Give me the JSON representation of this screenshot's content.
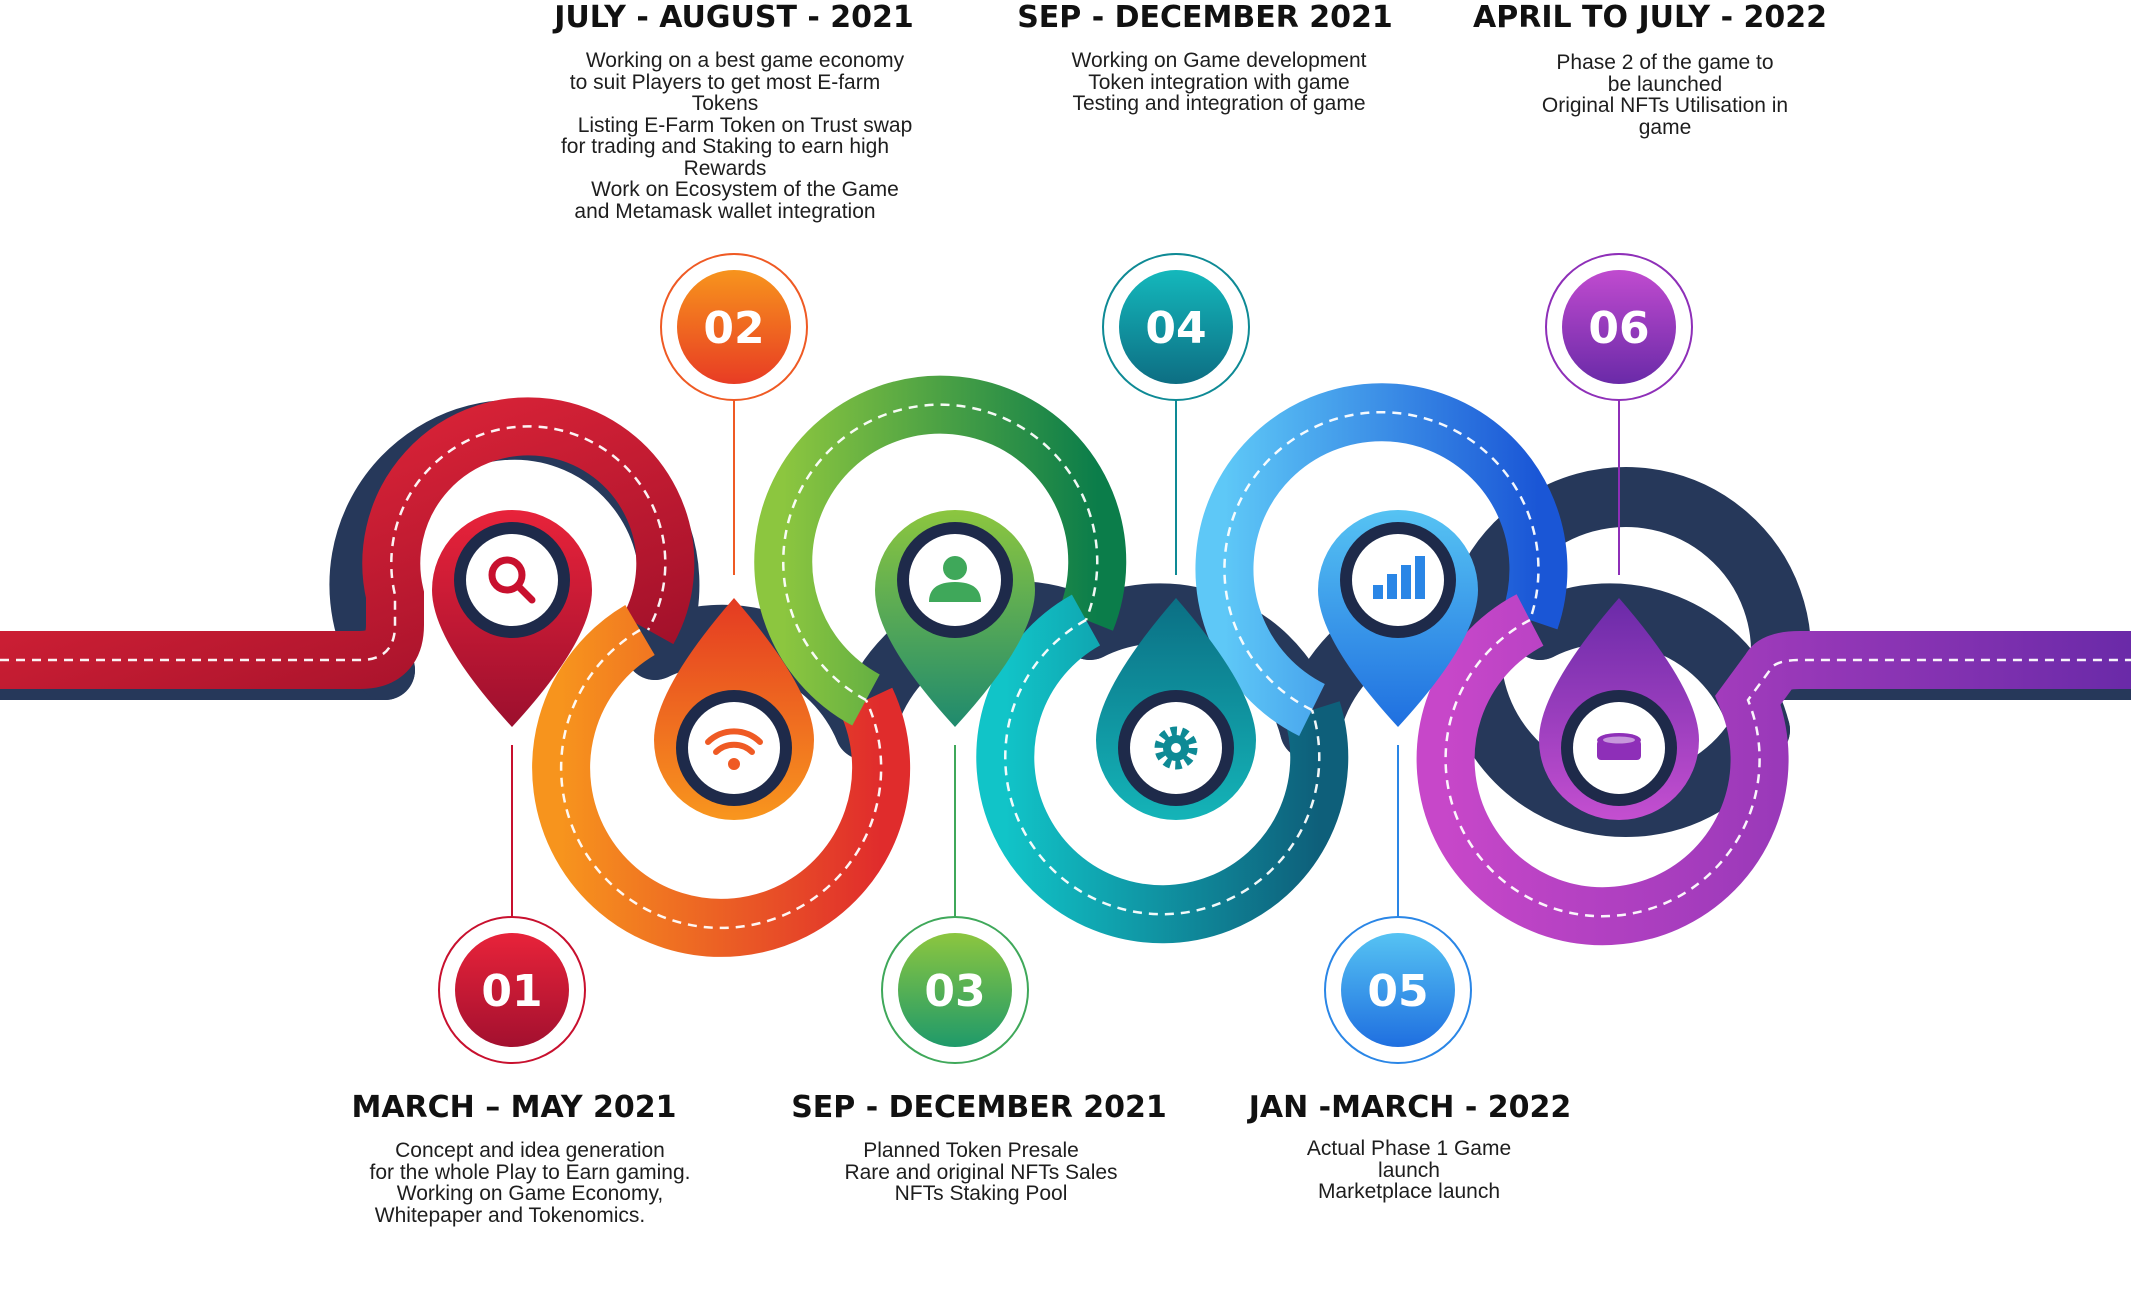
{
  "milestones": [
    {
      "number": "01",
      "period": "MARCH – MAY 2021",
      "icon": "magnifier-icon",
      "color": "#c8102e",
      "lines": [
        "Concept and idea generation",
        "for the whole Play to Earn gaming.",
        "Working on Game Economy,",
        "Whitepaper and Tokenomics."
      ]
    },
    {
      "number": "02",
      "period": "JULY - AUGUST - 2021",
      "icon": "wifi-icon",
      "color": "#ef5a24",
      "lines": [
        "Working on a best game economy",
        "to suit Players to get most E-farm",
        "Tokens",
        "Listing E-Farm Token on Trust swap",
        "for trading and Staking to earn high",
        "Rewards",
        "Work on Ecosystem of the Game",
        "and Metamask wallet integration"
      ]
    },
    {
      "number": "03",
      "period": "SEP - DECEMBER 2021",
      "icon": "user-icon",
      "color": "#3fa85a",
      "lines": [
        "Planned Token Presale",
        "Rare and original NFTs Sales",
        "NFTs Staking Pool"
      ]
    },
    {
      "number": "04",
      "period": "SEP - DECEMBER 2021",
      "icon": "gear-icon",
      "color": "#0e8a95",
      "lines": [
        "Working on Game development",
        "Token integration with game",
        "Testing and integration of game"
      ]
    },
    {
      "number": "05",
      "period": "JAN -MARCH - 2022",
      "icon": "bar-chart-icon",
      "color": "#2a86e6",
      "lines": [
        "Actual Phase 1 Game",
        "launch",
        "Marketplace launch"
      ]
    },
    {
      "number": "06",
      "period": "APRIL TO JULY  - 2022",
      "icon": "database-icon",
      "color": "#8e2fb8",
      "lines": [
        "Phase 2 of the game to",
        "be launched",
        "Original NFTs Utilisation in",
        "game"
      ]
    }
  ]
}
